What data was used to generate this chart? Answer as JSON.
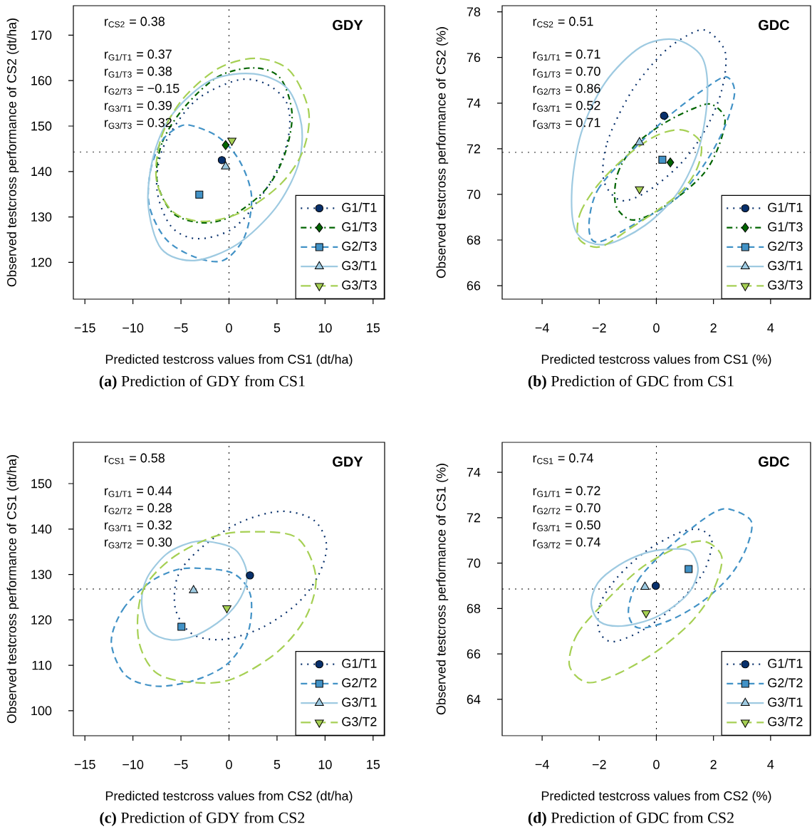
{
  "chart_data": [
    {
      "type": "scatter",
      "title": "**(a)** Prediction of GDY from CS1",
      "xlabel": "Predicted testcross values from CS1 (dt/ha)",
      "ylabel": "Observed testcross performance of CS2 (dt/ha)",
      "annotations": [
        "r$_{CS2}$ = 0.38",
        "r$_{G1/T1}$ = 0.37",
        "r$_{G1/T3}$ = 0.38",
        "r$_{G2/T3}$ = −0.15",
        "r$_{G3/T1}$ = 0.39",
        "r$_{G3/T3}$ = 0.32",
        "GDY"
      ],
      "xlim": [
        -16.2,
        16.2
      ],
      "ylim": [
        111.9,
        176.5
      ],
      "xticks": [
        {
          "value": -15,
          "label": "−15"
        },
        {
          "value": -10,
          "label": "−10"
        },
        {
          "value": -5,
          "label": "−5"
        },
        0,
        5,
        10,
        15
      ],
      "yticks": [
        120,
        130,
        140,
        150,
        160,
        170
      ],
      "legend": "bottom right",
      "ref_lines": [
        {
          "axis": "x",
          "value": 0,
          "color": "#000000",
          "line_style": "dotted"
        },
        {
          "axis": "y",
          "value": 144.3,
          "color": "#000000",
          "line_style": "dotted"
        }
      ],
      "series": [
        {
          "name": "G1/T1",
          "color": "#08306b",
          "marker": "circle",
          "line_style": "dotted",
          "x": [
            -0.74
          ],
          "values": [
            142.5
          ]
        },
        {
          "name": "G1/T3",
          "color": "#006400",
          "marker": "diamond",
          "line_style": "dashdot",
          "x": [
            -0.35
          ],
          "values": [
            145.8
          ]
        },
        {
          "name": "G2/T3",
          "color": "#4292c6",
          "marker": "square",
          "line_style": "dashed",
          "x": [
            -3.09
          ],
          "values": [
            134.9
          ]
        },
        {
          "name": "G3/T1",
          "color": "#9ecae1",
          "marker": "triangle",
          "line_style": "solid",
          "x": [
            -0.35
          ],
          "values": [
            141.1
          ]
        },
        {
          "name": "G3/T3",
          "color": "#a6d054",
          "marker": "triangle-down",
          "line_style": "longdash",
          "x": [
            0.3
          ],
          "values": [
            146.8
          ]
        }
      ]
    },
    {
      "type": "scatter",
      "title": "**(b)** Prediction of GDC from CS1",
      "xlabel": "Predicted testcross values from CS1 (%)",
      "ylabel": "Observed testcross performance of CS2 (%)",
      "annotations": [
        "r$_{CS2}$ = 0.51",
        "r$_{G1/T1}$ = 0.71",
        "r$_{G1/T3}$ = 0.70",
        "r$_{G2/T3}$ = 0.86",
        "r$_{G3/T1}$ = 0.52",
        "r$_{G3/T3}$ = 0.71",
        "GDC"
      ],
      "xlim": [
        -5.4,
        5.4
      ],
      "ylim": [
        65.41,
        78.27
      ],
      "xticks": [
        {
          "value": -4,
          "label": "−4"
        },
        {
          "value": -2,
          "label": "−2"
        },
        0,
        2,
        4
      ],
      "yticks": [
        66,
        68,
        70,
        72,
        74,
        76,
        78
      ],
      "legend": "bottom right",
      "ref_lines": [
        {
          "axis": "x",
          "value": 0,
          "color": "#000000",
          "line_style": "dotted"
        },
        {
          "axis": "y",
          "value": 71.84,
          "color": "#000000",
          "line_style": "dotted"
        }
      ],
      "series": [
        {
          "name": "G1/T1",
          "color": "#08306b",
          "marker": "circle",
          "line_style": "dotted",
          "x": [
            0.27
          ],
          "values": [
            73.45
          ]
        },
        {
          "name": "G1/T3",
          "color": "#006400",
          "marker": "diamond",
          "line_style": "dashdot",
          "x": [
            0.49
          ],
          "values": [
            71.4
          ]
        },
        {
          "name": "G2/T3",
          "color": "#4292c6",
          "marker": "square",
          "line_style": "dashed",
          "x": [
            0.21
          ],
          "values": [
            71.52
          ]
        },
        {
          "name": "G3/T1",
          "color": "#9ecae1",
          "marker": "triangle",
          "line_style": "solid",
          "x": [
            -0.59
          ],
          "values": [
            72.28
          ]
        },
        {
          "name": "G3/T3",
          "color": "#a6d054",
          "marker": "triangle-down",
          "line_style": "longdash",
          "x": [
            -0.59
          ],
          "values": [
            70.23
          ]
        }
      ]
    },
    {
      "type": "scatter",
      "title": "**(c)** Prediction of GDY from CS2",
      "xlabel": "Predicted testcross values from CS2 (dt/ha)",
      "ylabel": "Observed testcross performance of CS1 (dt/ha)",
      "annotations": [
        "r$_{CS1}$ = 0.58",
        "r$_{G1/T1}$ = 0.44",
        "r$_{G2/T2}$ = 0.28",
        "r$_{G3/T1}$ = 0.32",
        "r$_{G3/T2}$ = 0.30",
        "GDY"
      ],
      "xlim": [
        -16.2,
        16.2
      ],
      "ylim": [
        94.5,
        159.1
      ],
      "xticks": [
        {
          "value": -15,
          "label": "−15"
        },
        {
          "value": -10,
          "label": "−10"
        },
        {
          "value": -5,
          "label": "−5"
        },
        0,
        5,
        10,
        15
      ],
      "yticks": [
        100,
        110,
        120,
        130,
        140,
        150
      ],
      "legend": "bottom right",
      "ref_lines": [
        {
          "axis": "x",
          "value": 0,
          "color": "#000000",
          "line_style": "dotted"
        },
        {
          "axis": "y",
          "value": 126.8,
          "color": "#000000",
          "line_style": "dotted"
        }
      ],
      "series": [
        {
          "name": "G1/T1",
          "color": "#08306b",
          "marker": "circle",
          "line_style": "dotted",
          "x": [
            2.18
          ],
          "values": [
            129.8
          ]
        },
        {
          "name": "G2/T2",
          "color": "#4292c6",
          "marker": "square",
          "line_style": "dashed",
          "x": [
            -4.95
          ],
          "values": [
            118.5
          ]
        },
        {
          "name": "G3/T1",
          "color": "#9ecae1",
          "marker": "triangle",
          "line_style": "solid",
          "x": [
            -3.69
          ],
          "values": [
            126.5
          ]
        },
        {
          "name": "G3/T2",
          "color": "#a6d054",
          "marker": "triangle-down",
          "line_style": "longdash",
          "x": [
            -0.22
          ],
          "values": [
            122.6
          ]
        }
      ]
    },
    {
      "type": "scatter",
      "title": "**(d)** Prediction of GDC from CS2",
      "xlabel": "Predicted testcross values from CS2 (%)",
      "ylabel": "Observed testcross performance of CS1 (%)",
      "annotations": [
        "r$_{CS1}$ = 0.74",
        "r$_{G1/T1}$ = 0.72",
        "r$_{G2/T2}$ = 0.70",
        "r$_{G3/T1}$ = 0.50",
        "r$_{G3/T2}$ = 0.74",
        "GDC"
      ],
      "xlim": [
        -5.4,
        5.4
      ],
      "ylim": [
        62.4,
        75.32
      ],
      "xticks": [
        {
          "value": -4,
          "label": "−4"
        },
        {
          "value": -2,
          "label": "−2"
        },
        0,
        2,
        4
      ],
      "yticks": [
        64,
        66,
        68,
        70,
        72,
        74
      ],
      "legend": "bottom right",
      "ref_lines": [
        {
          "axis": "x",
          "value": 0,
          "color": "#000000",
          "line_style": "dotted"
        },
        {
          "axis": "y",
          "value": 68.86,
          "color": "#000000",
          "line_style": "dotted"
        }
      ],
      "series": [
        {
          "name": "G1/T1",
          "color": "#08306b",
          "marker": "circle",
          "line_style": "dotted",
          "x": [
            -0.02
          ],
          "values": [
            69.0
          ]
        },
        {
          "name": "G2/T2",
          "color": "#4292c6",
          "marker": "square",
          "line_style": "dashed",
          "x": [
            1.13
          ],
          "values": [
            69.74
          ]
        },
        {
          "name": "G3/T1",
          "color": "#9ecae1",
          "marker": "triangle",
          "line_style": "solid",
          "x": [
            -0.4
          ],
          "values": [
            68.95
          ]
        },
        {
          "name": "G3/T2",
          "color": "#a6d054",
          "marker": "triangle-down",
          "line_style": "longdash",
          "x": [
            -0.36
          ],
          "values": [
            67.8
          ]
        }
      ]
    }
  ]
}
